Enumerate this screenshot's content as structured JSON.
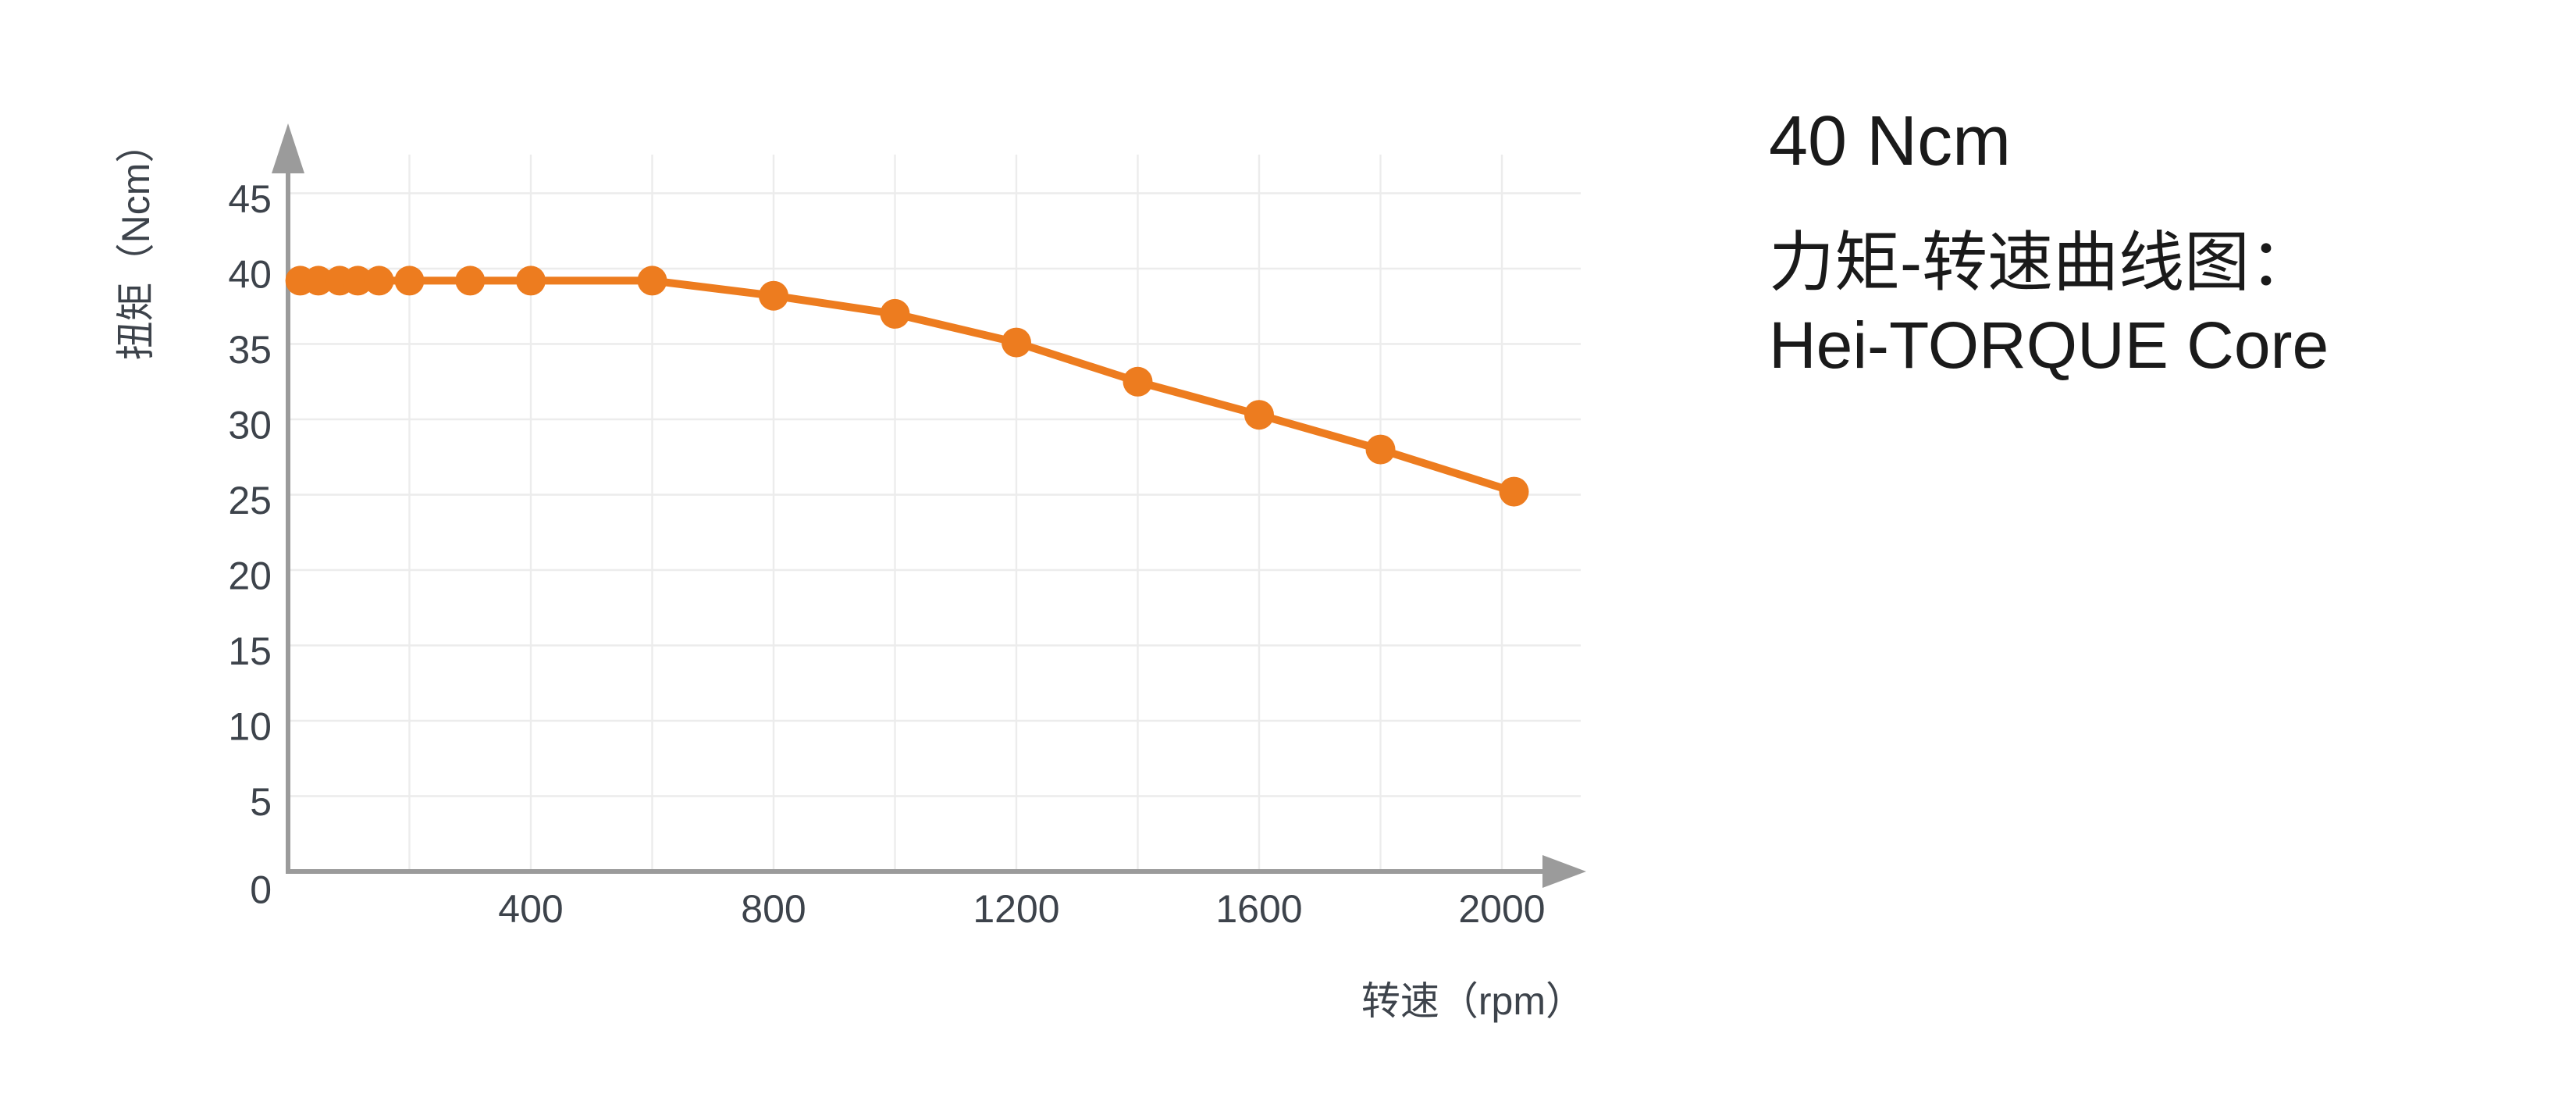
{
  "chart_data": {
    "type": "line",
    "title": "力矩-转速曲线图：Hei-TORQUE Core",
    "xlabel": "转速（rpm）",
    "ylabel": "扭矩（Ncm）",
    "xlim": [
      0,
      2130
    ],
    "ylim": [
      0,
      47.5
    ],
    "x_tick_labels": [
      400,
      800,
      1200,
      1600,
      2000
    ],
    "x_grid_step": 200,
    "x_grid_max": 2000,
    "y_ticks": [
      0,
      5,
      10,
      15,
      20,
      25,
      30,
      35,
      40,
      45
    ],
    "grid": true,
    "legend_position": "none",
    "series": [
      {
        "name": "Hei-TORQUE Core (40 Ncm)",
        "color": "#ed7c1f",
        "x": [
          20,
          50,
          85,
          115,
          150,
          200,
          300,
          400,
          600,
          800,
          1000,
          1200,
          1400,
          1600,
          1800,
          2020
        ],
        "y": [
          39.2,
          39.2,
          39.2,
          39.2,
          39.2,
          39.2,
          39.2,
          39.2,
          39.2,
          38.2,
          37.0,
          35.1,
          32.5,
          30.3,
          28.0,
          25.2
        ]
      }
    ],
    "colors": {
      "axis": "#9b9b9b",
      "grid": "#ececec",
      "tick_text": "#3d434b"
    }
  },
  "side_panel": {
    "heading": "40 Ncm",
    "caption_line1": "力矩-转速曲线图：",
    "caption_line2": "Hei-TORQUE Core"
  }
}
